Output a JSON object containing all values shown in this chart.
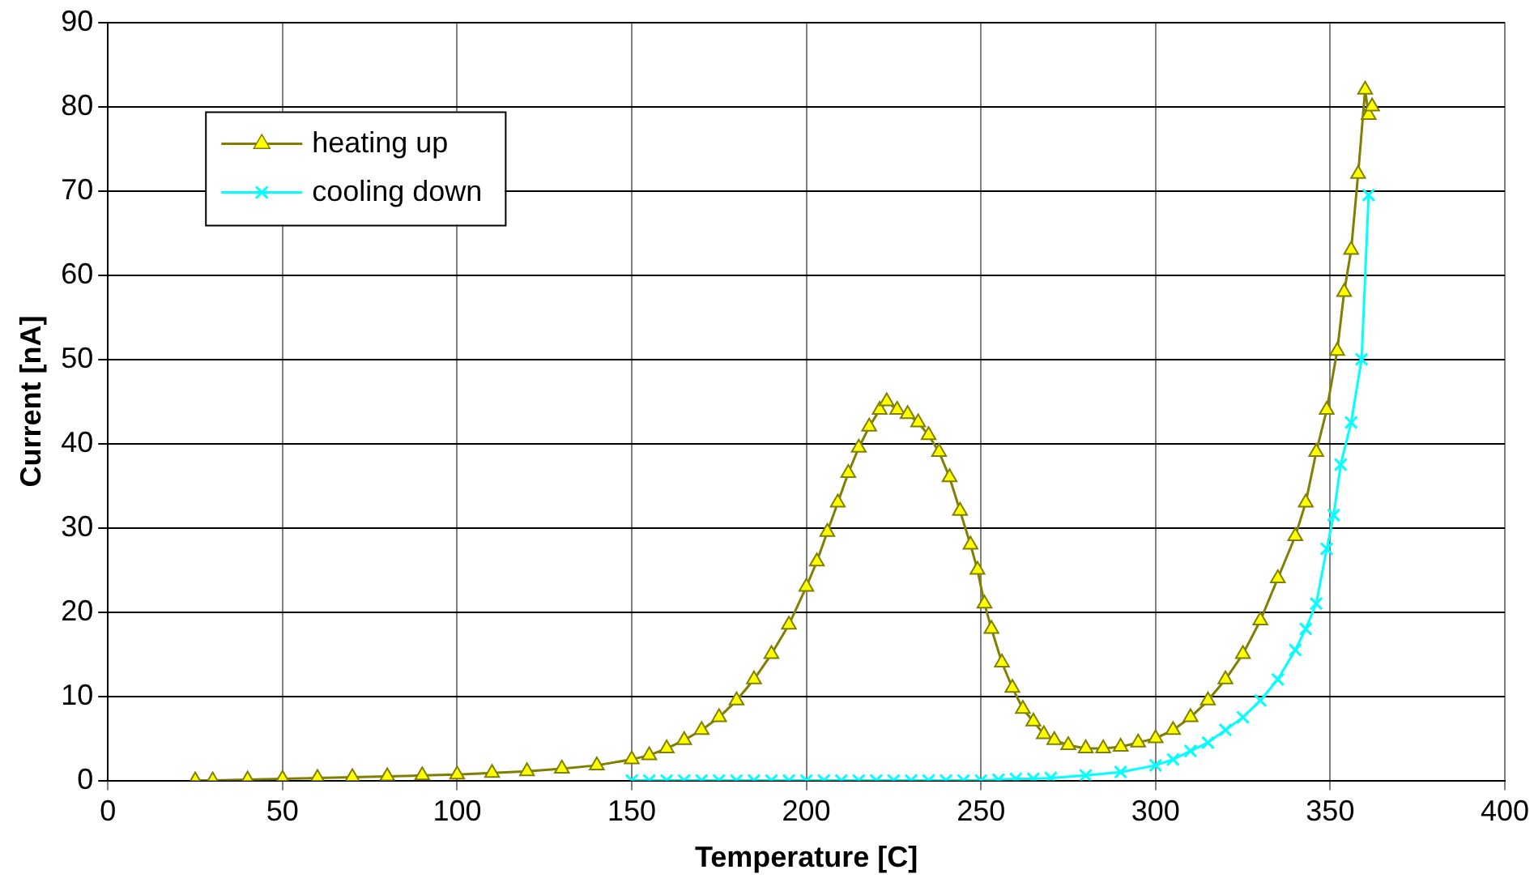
{
  "chart_data": {
    "type": "line",
    "xlabel": "Temperature [C]",
    "ylabel": "Current [nA]",
    "xlim": [
      0,
      400
    ],
    "xticks": [
      0,
      50,
      100,
      150,
      200,
      250,
      300,
      350,
      400
    ],
    "ylim": [
      0,
      90
    ],
    "yticks": [
      0,
      10,
      20,
      30,
      40,
      50,
      60,
      70,
      80,
      90
    ],
    "grid": true,
    "legend": "top left",
    "line_style": "solid",
    "series": [
      {
        "name": "heating up",
        "color": "#808000",
        "marker": "triangle",
        "x": [
          25,
          30,
          40,
          50,
          60,
          70,
          80,
          90,
          100,
          110,
          120,
          130,
          140,
          150,
          155,
          160,
          165,
          170,
          175,
          180,
          185,
          190,
          195,
          200,
          203,
          206,
          209,
          212,
          215,
          218,
          221,
          223,
          226,
          229,
          232,
          235,
          238,
          241,
          244,
          247,
          249,
          251,
          253,
          256,
          259,
          262,
          265,
          268,
          271,
          275,
          280,
          285,
          290,
          295,
          300,
          305,
          310,
          315,
          320,
          325,
          330,
          335,
          340,
          343,
          346,
          349,
          352,
          354,
          356,
          358,
          360,
          361,
          362
        ],
        "values": [
          0,
          0,
          0.1,
          0.2,
          0.3,
          0.4,
          0.5,
          0.6,
          0.7,
          0.9,
          1.1,
          1.4,
          1.8,
          2.5,
          3,
          3.8,
          4.8,
          6,
          7.5,
          9.5,
          12,
          15,
          18.5,
          23,
          26,
          29.5,
          33,
          36.5,
          39.5,
          42,
          44,
          45,
          44,
          43.5,
          42.5,
          41,
          39,
          36,
          32,
          28,
          25,
          21,
          18,
          14,
          11,
          8.5,
          7,
          5.5,
          4.8,
          4.2,
          3.8,
          3.8,
          4,
          4.5,
          5,
          6,
          7.5,
          9.5,
          12,
          15,
          19,
          24,
          29,
          33,
          39,
          44,
          51,
          58,
          63,
          72,
          82,
          79,
          80
        ]
      },
      {
        "name": "cooling down",
        "color": "#00ffff",
        "marker": "cross",
        "x": [
          150,
          155,
          160,
          165,
          170,
          175,
          180,
          185,
          190,
          195,
          200,
          205,
          210,
          215,
          220,
          225,
          230,
          235,
          240,
          245,
          250,
          255,
          260,
          265,
          270,
          280,
          290,
          300,
          305,
          310,
          315,
          320,
          325,
          330,
          335,
          340,
          343,
          346,
          349,
          351,
          353,
          356,
          359,
          361
        ],
        "values": [
          0,
          0,
          0,
          0,
          0,
          0,
          0,
          0,
          0,
          0,
          0,
          0,
          0,
          0,
          0,
          0,
          0,
          0,
          0,
          0,
          0,
          0.1,
          0.2,
          0.2,
          0.3,
          0.6,
          1,
          1.8,
          2.5,
          3.5,
          4.5,
          6,
          7.5,
          9.5,
          12,
          15.5,
          18,
          21,
          27.5,
          31.5,
          37.5,
          42.5,
          50,
          69.5
        ]
      }
    ]
  }
}
